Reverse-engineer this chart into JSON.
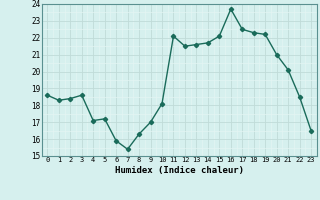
{
  "x": [
    0,
    1,
    2,
    3,
    4,
    5,
    6,
    7,
    8,
    9,
    10,
    11,
    12,
    13,
    14,
    15,
    16,
    17,
    18,
    19,
    20,
    21,
    22,
    23
  ],
  "y": [
    18.6,
    18.3,
    18.4,
    18.6,
    17.1,
    17.2,
    15.9,
    15.4,
    16.3,
    17.0,
    18.1,
    22.1,
    21.5,
    21.6,
    21.7,
    22.1,
    23.7,
    22.5,
    22.3,
    22.2,
    21.0,
    20.1,
    18.5,
    16.5
  ],
  "xlabel": "Humidex (Indice chaleur)",
  "ylim": [
    15,
    24
  ],
  "xlim": [
    -0.5,
    23.5
  ],
  "yticks": [
    15,
    16,
    17,
    18,
    19,
    20,
    21,
    22,
    23,
    24
  ],
  "xticks": [
    0,
    1,
    2,
    3,
    4,
    5,
    6,
    7,
    8,
    9,
    10,
    11,
    12,
    13,
    14,
    15,
    16,
    17,
    18,
    19,
    20,
    21,
    22,
    23
  ],
  "line_color": "#1a6b5a",
  "marker": "D",
  "marker_size": 2.2,
  "bg_color": "#d6f0ee",
  "major_grid_color": "#c0dbd8",
  "minor_grid_color": "#e4f5f3",
  "line_width": 1.0
}
